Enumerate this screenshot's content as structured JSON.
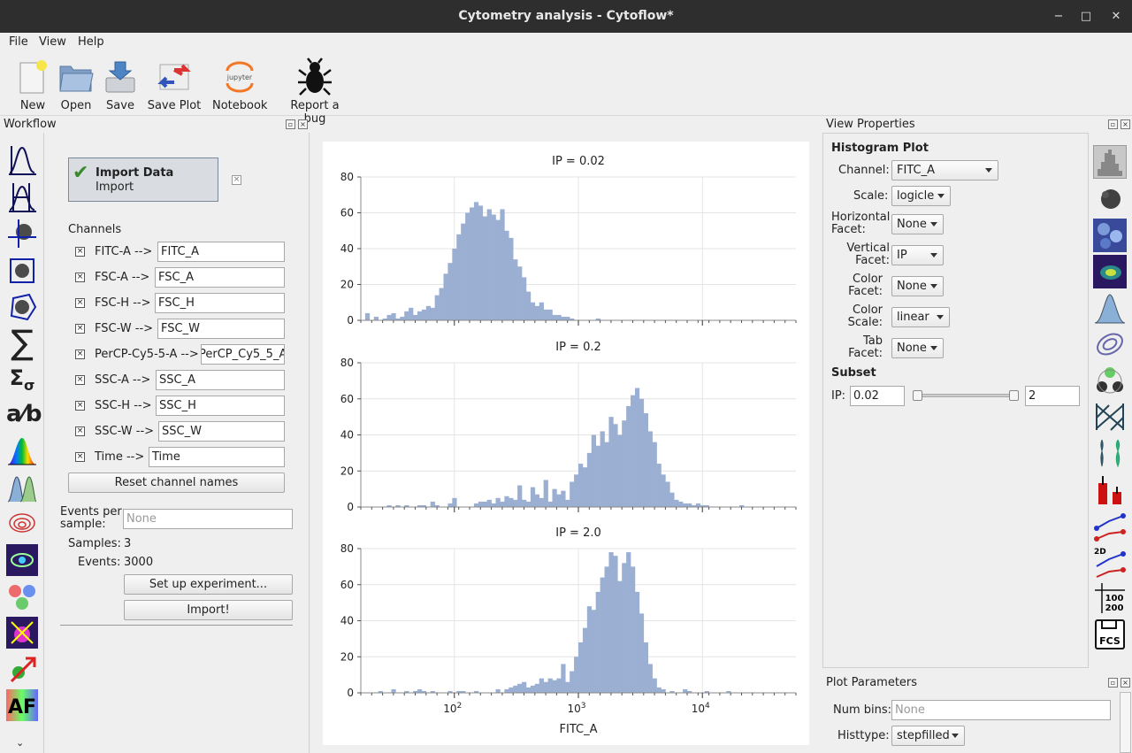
{
  "window": {
    "title": "Cytometry analysis - Cytoflow*",
    "minimize": "−",
    "maximize": "□",
    "close": "✕"
  },
  "menu": [
    {
      "label": "File"
    },
    {
      "label": "View"
    },
    {
      "label": "Help"
    }
  ],
  "toolbar": [
    {
      "label": "New",
      "icon": "new-file-icon"
    },
    {
      "label": "Open",
      "icon": "open-folder-icon"
    },
    {
      "label": "Save",
      "icon": "save-drive-icon"
    },
    {
      "label": "Save Plot",
      "icon": "save-plot-icon"
    },
    {
      "label": "Notebook",
      "icon": "jupyter-icon"
    },
    {
      "label": "Report a bug",
      "icon": "bug-icon"
    }
  ],
  "workflow": {
    "title": "Workflow",
    "import_op": {
      "title": "Import Data",
      "subtitle": "Import"
    },
    "channels_label": "Channels",
    "channels": [
      {
        "name": "FITC-A",
        "arrow": "-->",
        "value": "FITC_A"
      },
      {
        "name": "FSC-A",
        "arrow": "-->",
        "value": "FSC_A"
      },
      {
        "name": "FSC-H",
        "arrow": "-->",
        "value": "FSC_H"
      },
      {
        "name": "FSC-W",
        "arrow": "-->",
        "value": "FSC_W"
      },
      {
        "name": "PerCP-Cy5-5-A",
        "arrow": "-->",
        "value": "PerCP_Cy5_5_A"
      },
      {
        "name": "SSC-A",
        "arrow": "-->",
        "value": "SSC_A"
      },
      {
        "name": "SSC-H",
        "arrow": "-->",
        "value": "SSC_H"
      },
      {
        "name": "SSC-W",
        "arrow": "-->",
        "value": "SSC_W"
      },
      {
        "name": "Time",
        "arrow": "-->",
        "value": "Time"
      }
    ],
    "reset_button": "Reset channel names",
    "events_label": "Events per sample:",
    "events_placeholder": "None",
    "samples_label": "Samples:",
    "samples_value": "3",
    "events_count_label": "Events:",
    "events_count_value": "3000",
    "setup_button": "Set up experiment...",
    "import_button": "Import!"
  },
  "view_properties": {
    "title": "View Properties",
    "plot_name": "Histogram Plot",
    "channel_label": "Channel:",
    "channel": "FITC_A",
    "scale_label": "Scale:",
    "scale": "logicle",
    "hfacet_label": "Horizontal Facet:",
    "hfacet": "None",
    "vfacet_label": "Vertical Facet:",
    "vfacet": "IP",
    "cfacet_label": "Color Facet:",
    "cfacet": "None",
    "cscale_label": "Color Scale:",
    "cscale": "linear",
    "tfacet_label": "Tab Facet:",
    "tfacet": "None",
    "subset_title": "Subset",
    "ip_label": "IP:",
    "ip_min": "0.02",
    "ip_max": "2"
  },
  "plot_parameters": {
    "title": "Plot Parameters",
    "num_bins_label": "Num bins:",
    "num_bins_placeholder": "None",
    "histtype_label": "Histtype:",
    "histtype": "stepfilled"
  },
  "colors": {
    "bar_fill": "#9aafd2",
    "titlebar": "#2e2e2e"
  },
  "chart_data": [
    {
      "type": "bar",
      "title": "IP = 0.02",
      "xlabel": "",
      "ylabel": "",
      "xscale": "logicle",
      "ylim": [
        0,
        80
      ],
      "yticks": [
        0,
        20,
        40,
        60,
        80
      ],
      "grid": true,
      "series": [
        {
          "values": [
            0,
            4,
            0,
            2,
            0,
            1,
            3,
            4,
            1,
            2,
            5,
            7,
            3,
            5,
            6,
            8,
            7,
            14,
            18,
            26,
            32,
            40,
            48,
            54,
            60,
            63,
            66,
            64,
            58,
            62,
            59,
            56,
            62,
            50,
            46,
            34,
            30,
            24,
            16,
            10,
            8,
            10,
            6,
            6,
            3,
            3,
            2,
            2,
            1,
            0,
            0,
            0,
            0,
            0,
            1,
            0,
            0,
            0,
            0,
            0,
            0,
            0,
            0,
            0,
            0,
            0,
            0,
            0,
            0,
            0,
            0,
            0,
            0,
            0,
            0,
            0,
            0,
            0,
            0,
            0,
            0,
            0,
            0,
            0,
            0,
            0,
            0,
            0,
            0,
            0,
            0,
            0,
            0,
            0,
            0,
            0,
            0,
            0,
            0,
            0
          ]
        }
      ]
    },
    {
      "type": "bar",
      "title": "IP = 0.2",
      "xlabel": "",
      "ylabel": "",
      "xscale": "logicle",
      "ylim": [
        0,
        80
      ],
      "yticks": [
        0,
        20,
        40,
        60,
        80
      ],
      "grid": true,
      "series": [
        {
          "values": [
            0,
            0,
            0,
            0,
            0,
            0,
            1,
            0,
            1,
            0,
            1,
            0,
            0,
            1,
            1,
            0,
            3,
            1,
            0,
            0,
            2,
            5,
            0,
            0,
            0,
            0,
            2,
            3,
            3,
            4,
            2,
            5,
            3,
            6,
            5,
            4,
            12,
            4,
            3,
            11,
            7,
            5,
            15,
            3,
            10,
            7,
            9,
            4,
            14,
            18,
            24,
            22,
            30,
            40,
            34,
            42,
            36,
            50,
            46,
            40,
            48,
            56,
            62,
            66,
            60,
            52,
            42,
            36,
            24,
            18,
            14,
            8,
            4,
            3,
            2,
            2,
            1,
            2,
            1,
            1,
            0,
            0,
            0,
            0,
            0,
            0,
            0,
            1,
            0,
            0,
            0,
            0,
            0,
            0,
            0,
            0,
            0,
            0,
            0,
            0
          ]
        }
      ]
    },
    {
      "type": "bar",
      "title": "IP = 2.0",
      "xlabel": "FITC_A",
      "ylabel": "",
      "xscale": "logicle",
      "ylim": [
        0,
        80
      ],
      "yticks": [
        0,
        20,
        40,
        60,
        80
      ],
      "grid": true,
      "series": [
        {
          "values": [
            0,
            0,
            0,
            0,
            1,
            0,
            0,
            2,
            0,
            0,
            1,
            0,
            1,
            2,
            1,
            0,
            1,
            0,
            0,
            0,
            1,
            0,
            1,
            1,
            0,
            0,
            1,
            0,
            0,
            0,
            0,
            2,
            0,
            2,
            3,
            4,
            5,
            6,
            3,
            4,
            5,
            8,
            6,
            8,
            7,
            8,
            16,
            6,
            12,
            20,
            28,
            36,
            48,
            46,
            56,
            64,
            70,
            78,
            76,
            62,
            72,
            78,
            70,
            56,
            44,
            28,
            16,
            8,
            3,
            2,
            0,
            1,
            0,
            0,
            2,
            1,
            0,
            0,
            0,
            1,
            0,
            0,
            0,
            0,
            1,
            0,
            0,
            0,
            0,
            0,
            0,
            0,
            0,
            0,
            0,
            0,
            0,
            0,
            0,
            0
          ]
        }
      ]
    }
  ]
}
